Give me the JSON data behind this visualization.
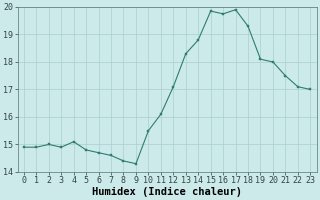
{
  "x": [
    0,
    1,
    2,
    3,
    4,
    5,
    6,
    7,
    8,
    9,
    10,
    11,
    12,
    13,
    14,
    15,
    16,
    17,
    18,
    19,
    20,
    21,
    22,
    23
  ],
  "y": [
    14.9,
    14.9,
    15.0,
    14.9,
    15.1,
    14.8,
    14.7,
    14.6,
    14.4,
    14.3,
    15.5,
    16.1,
    17.1,
    18.3,
    18.8,
    19.85,
    19.75,
    19.9,
    19.3,
    18.1,
    18.0,
    17.5,
    17.1,
    17.0
  ],
  "line_color": "#2e7d6e",
  "marker": "s",
  "marker_size": 1.8,
  "bg_color": "#cceaea",
  "grid_color": "#aacece",
  "xlabel": "Humidex (Indice chaleur)",
  "ylim": [
    14,
    20
  ],
  "xlim_min": -0.5,
  "xlim_max": 23.5,
  "yticks": [
    14,
    15,
    16,
    17,
    18,
    19,
    20
  ],
  "xticks": [
    0,
    1,
    2,
    3,
    4,
    5,
    6,
    7,
    8,
    9,
    10,
    11,
    12,
    13,
    14,
    15,
    16,
    17,
    18,
    19,
    20,
    21,
    22,
    23
  ],
  "xlabel_fontsize": 7.5,
  "tick_fontsize": 6.0
}
